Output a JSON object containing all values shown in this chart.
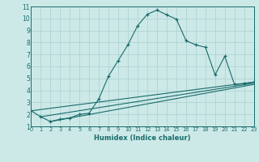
{
  "xlabel": "Humidex (Indice chaleur)",
  "bg_color": "#cce9e8",
  "line_color": "#1a6b6b",
  "grid_color": "#afd4d3",
  "xlim": [
    0,
    23
  ],
  "ylim": [
    1,
    11
  ],
  "xticks": [
    0,
    1,
    2,
    3,
    4,
    5,
    6,
    7,
    8,
    9,
    10,
    11,
    12,
    13,
    14,
    15,
    16,
    17,
    18,
    19,
    20,
    21,
    22,
    23
  ],
  "yticks": [
    1,
    2,
    3,
    4,
    5,
    6,
    7,
    8,
    9,
    10,
    11
  ],
  "series": {
    "main": {
      "x": [
        0,
        1,
        2,
        3,
        4,
        5,
        6,
        7,
        8,
        9,
        10,
        11,
        12,
        13,
        14,
        15,
        16,
        17,
        18,
        19,
        20,
        21,
        22,
        23
      ],
      "y": [
        2.3,
        1.8,
        1.4,
        1.6,
        1.7,
        2.0,
        2.1,
        3.3,
        5.2,
        6.5,
        7.8,
        9.4,
        10.35,
        10.7,
        10.3,
        9.95,
        8.15,
        7.8,
        7.6,
        5.3,
        6.85,
        4.5,
        4.55,
        4.7
      ]
    },
    "line1": {
      "x": [
        0,
        23
      ],
      "y": [
        2.3,
        4.7
      ]
    },
    "line2": {
      "x": [
        1,
        23
      ],
      "y": [
        1.8,
        4.6
      ]
    },
    "line3": {
      "x": [
        2,
        23
      ],
      "y": [
        1.4,
        4.5
      ]
    }
  }
}
